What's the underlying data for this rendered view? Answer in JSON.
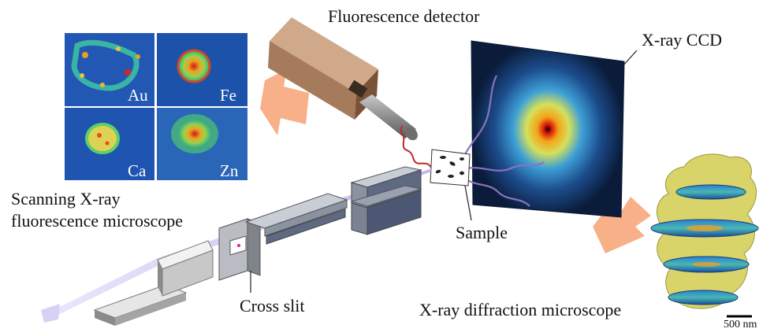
{
  "labels": {
    "fluorescence_detector": "Fluorescence detector",
    "xray_ccd": "X-ray CCD",
    "sxfm_line1": "Scanning X-ray",
    "sxfm_line2": "fluorescence microscope",
    "sample": "Sample",
    "cross_slit": "Cross slit",
    "xdm": "X-ray diffraction microscope",
    "scale_bar": "500 nm"
  },
  "element_maps": [
    "Au",
    "Fe",
    "Ca",
    "Zn"
  ],
  "colors": {
    "arrow_orange": "#f8b088",
    "detector_body": "#a67b5b",
    "slit_gray": "#8f949c",
    "mirror_blue": "#5e6a82",
    "map_background": "#1f4fa8",
    "isosurface_yellow": "#d8d46a",
    "beam_purple": "#b7aee6",
    "fluorescence_wave": "#c02828",
    "scatter_wave": "#8a72c0"
  }
}
